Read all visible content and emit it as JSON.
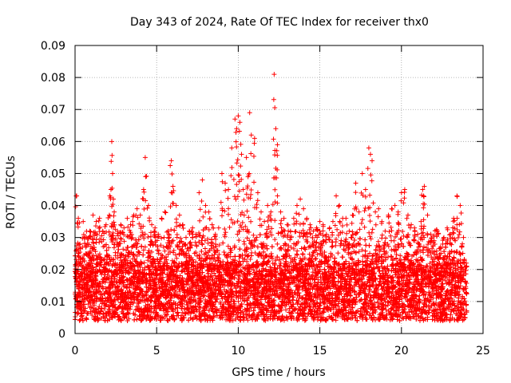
{
  "chart_data": {
    "type": "scatter",
    "title": "Day 343 of 2024, Rate Of TEC Index for receiver thx0",
    "xlabel": "GPS time / hours",
    "ylabel": "ROTI / TECUs",
    "xlim": [
      0,
      25
    ],
    "ylim": [
      0,
      0.09
    ],
    "xticks": [
      0,
      5,
      10,
      15,
      20,
      25
    ],
    "xtick_labels": [
      "0",
      "5",
      "10",
      "15",
      "20",
      "25"
    ],
    "yticks": [
      0,
      0.01,
      0.02,
      0.03,
      0.04,
      0.05,
      0.06,
      0.07,
      0.08,
      0.09
    ],
    "ytick_labels": [
      "0",
      "0.01",
      "0.02",
      "0.03",
      "0.04",
      "0.05",
      "0.06",
      "0.07",
      "0.08",
      "0.09"
    ],
    "grid": true,
    "marker": "+",
    "color": "#ff0000",
    "series": [
      {
        "x": [
          0.1,
          0.2,
          0.3,
          0.5,
          0.7,
          0.9,
          1.1,
          1.3,
          1.5,
          1.7,
          1.9,
          2.1,
          2.2,
          2.25,
          2.3,
          2.35,
          2.4,
          2.6,
          2.8,
          3.0,
          3.2,
          3.4,
          3.6,
          3.8,
          4.0,
          4.2,
          4.3,
          4.5,
          4.7,
          4.9,
          5.1,
          5.3,
          5.5,
          5.7,
          5.9,
          6.0,
          6.2,
          6.4,
          6.6,
          6.8,
          7.0,
          7.2,
          7.4,
          7.6,
          7.8,
          8.0,
          8.2,
          8.4,
          8.6,
          8.8,
          9.0,
          9.2,
          9.4,
          9.6,
          9.8,
          9.9,
          10.0,
          10.1,
          10.2,
          10.3,
          10.5,
          10.6,
          10.7,
          10.8,
          11.0,
          11.2,
          11.4,
          11.6,
          11.8,
          12.0,
          12.2,
          12.3,
          12.4,
          12.6,
          12.8,
          13.0,
          13.2,
          13.4,
          13.6,
          13.8,
          14.0,
          14.2,
          14.4,
          14.6,
          14.8,
          15.0,
          15.2,
          15.4,
          15.6,
          15.8,
          16.0,
          16.2,
          16.4,
          16.6,
          16.8,
          17.0,
          17.2,
          17.4,
          17.6,
          17.8,
          18.0,
          18.1,
          18.2,
          18.4,
          18.6,
          18.8,
          19.0,
          19.2,
          19.4,
          19.6,
          19.8,
          20.0,
          20.2,
          20.4,
          20.6,
          20.8,
          21.0,
          21.2,
          21.3,
          21.4,
          21.6,
          21.8,
          22.0,
          22.2,
          22.4,
          22.6,
          22.8,
          23.0,
          23.2,
          23.4,
          23.6,
          23.8
        ],
        "y": [
          0.043,
          0.036,
          0.028,
          0.035,
          0.03,
          0.032,
          0.037,
          0.035,
          0.036,
          0.032,
          0.034,
          0.037,
          0.045,
          0.06,
          0.05,
          0.042,
          0.038,
          0.032,
          0.034,
          0.033,
          0.036,
          0.034,
          0.037,
          0.039,
          0.037,
          0.045,
          0.055,
          0.04,
          0.034,
          0.033,
          0.031,
          0.036,
          0.038,
          0.032,
          0.054,
          0.046,
          0.04,
          0.037,
          0.034,
          0.03,
          0.032,
          0.033,
          0.031,
          0.044,
          0.048,
          0.04,
          0.038,
          0.034,
          0.031,
          0.033,
          0.05,
          0.047,
          0.045,
          0.058,
          0.067,
          0.064,
          0.068,
          0.066,
          0.056,
          0.045,
          0.055,
          0.049,
          0.069,
          0.062,
          0.061,
          0.044,
          0.038,
          0.035,
          0.04,
          0.038,
          0.081,
          0.064,
          0.059,
          0.038,
          0.036,
          0.034,
          0.032,
          0.036,
          0.04,
          0.042,
          0.039,
          0.036,
          0.034,
          0.032,
          0.033,
          0.035,
          0.034,
          0.031,
          0.033,
          0.035,
          0.043,
          0.04,
          0.036,
          0.036,
          0.032,
          0.037,
          0.047,
          0.038,
          0.05,
          0.045,
          0.058,
          0.056,
          0.054,
          0.038,
          0.039,
          0.035,
          0.032,
          0.037,
          0.039,
          0.04,
          0.038,
          0.044,
          0.045,
          0.037,
          0.034,
          0.033,
          0.031,
          0.035,
          0.045,
          0.046,
          0.037,
          0.031,
          0.029,
          0.032,
          0.027,
          0.03,
          0.033,
          0.031,
          0.036,
          0.043,
          0.04,
          0.03
        ]
      }
    ]
  }
}
